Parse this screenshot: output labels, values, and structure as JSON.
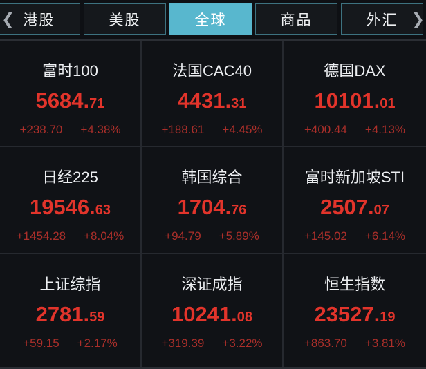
{
  "tabbar": {
    "left_chevron": "❮",
    "right_chevron": "❯",
    "tabs": [
      {
        "label": "港股",
        "active": false
      },
      {
        "label": "美股",
        "active": false
      },
      {
        "label": "全球",
        "active": true
      },
      {
        "label": "商品",
        "active": false
      },
      {
        "label": "外汇",
        "active": false
      }
    ],
    "active_tab": "全球"
  },
  "indices": [
    {
      "name": "富时100",
      "price_int": "5684.",
      "price_frac": "71",
      "change": "+238.70",
      "pct": "+4.38%"
    },
    {
      "name": "法国CAC40",
      "price_int": "4431.",
      "price_frac": "31",
      "change": "+188.61",
      "pct": "+4.45%"
    },
    {
      "name": "德国DAX",
      "price_int": "10101.",
      "price_frac": "01",
      "change": "+400.44",
      "pct": "+4.13%"
    },
    {
      "name": "日经225",
      "price_int": "19546.",
      "price_frac": "63",
      "change": "+1454.28",
      "pct": "+8.04%"
    },
    {
      "name": "韩国综合",
      "price_int": "1704.",
      "price_frac": "76",
      "change": "+94.79",
      "pct": "+5.89%"
    },
    {
      "name": "富时新加坡STI",
      "price_int": "2507.",
      "price_frac": "07",
      "change": "+145.02",
      "pct": "+6.14%"
    },
    {
      "name": "上证综指",
      "price_int": "2781.",
      "price_frac": "59",
      "change": "+59.15",
      "pct": "+2.17%"
    },
    {
      "name": "深证成指",
      "price_int": "10241.",
      "price_frac": "08",
      "change": "+319.39",
      "pct": "+3.22%"
    },
    {
      "name": "恒生指数",
      "price_int": "23527.",
      "price_frac": "19",
      "change": "+863.70",
      "pct": "+3.81%"
    }
  ],
  "colors": {
    "active_tab_bg": "#58b7ce",
    "tab_border": "#3d7280",
    "price_up_red": "#e2342b",
    "change_up_red": "#ab2f2a"
  }
}
